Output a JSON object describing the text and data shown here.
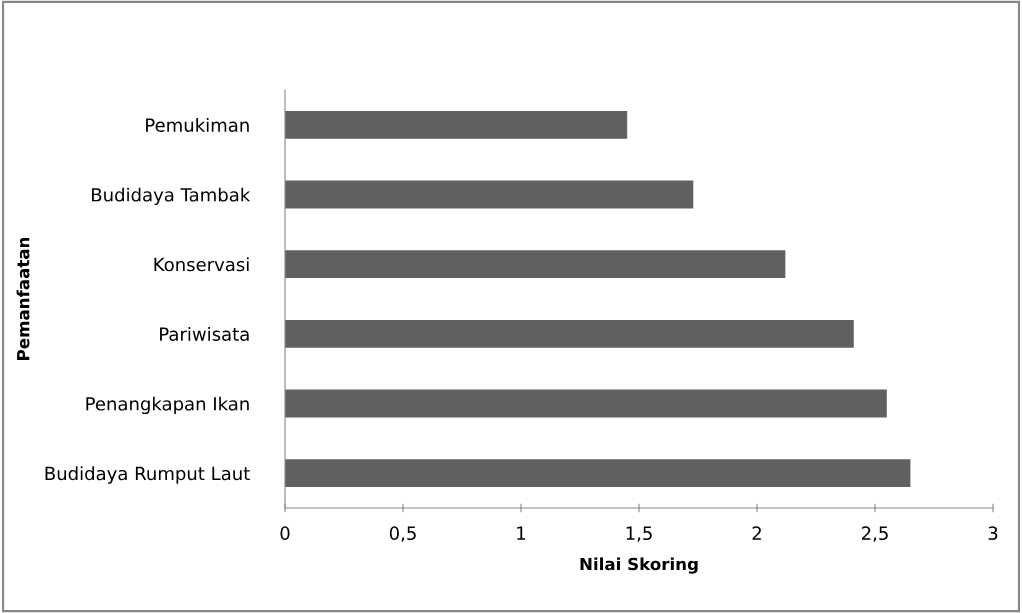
{
  "chart_data": {
    "type": "bar",
    "orientation": "horizontal",
    "categories": [
      "Pemukiman",
      "Budidaya Tambak",
      "Konservasi",
      "Pariwisata",
      "Penangkapan Ikan",
      "Budidaya Rumput Laut"
    ],
    "values": [
      1.45,
      1.73,
      2.12,
      2.41,
      2.55,
      2.65
    ],
    "color": "#606060",
    "xlim": [
      0,
      3
    ],
    "xticks": [
      {
        "value": 0,
        "label": "0"
      },
      {
        "value": 0.5,
        "label": "0,5"
      },
      {
        "value": 1,
        "label": "1"
      },
      {
        "value": 1.5,
        "label": "1,5"
      },
      {
        "value": 2,
        "label": "2"
      },
      {
        "value": 2.5,
        "label": "2,5"
      },
      {
        "value": 3,
        "label": "3"
      }
    ],
    "xlabel": "Nilai Skoring",
    "ylabel": "Pemanfaatan",
    "grid": false,
    "legend": false
  }
}
